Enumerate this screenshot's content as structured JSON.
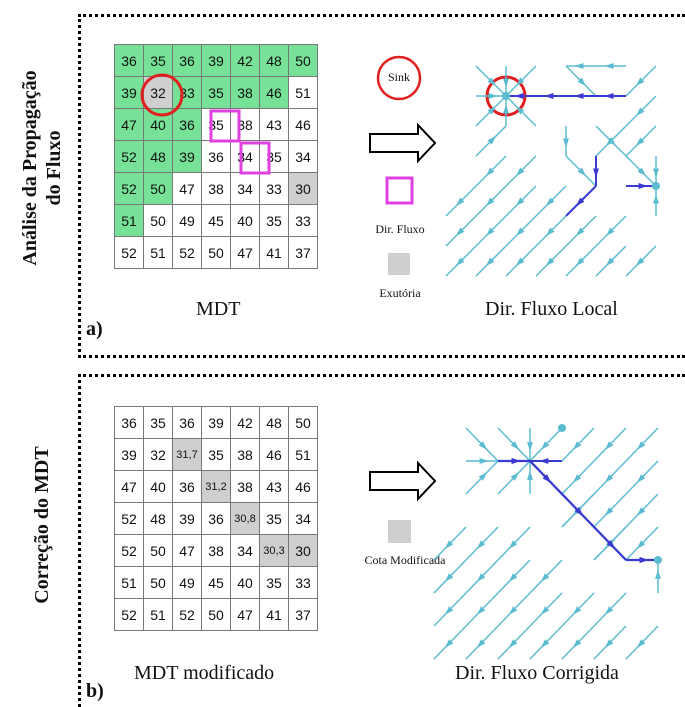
{
  "panel_a": {
    "vertical_title_line1": "Análise da Propagação",
    "vertical_title_line2": "do Fluxo",
    "letter": "a)",
    "grid_caption": "MDT",
    "result_caption": "Dir. Fluxo Local",
    "legend": {
      "sink": "Sink",
      "flow_dir": "Dir. Fluxo",
      "outlet": "Exutória"
    },
    "grid": [
      [
        "36",
        "35",
        "36",
        "39",
        "42",
        "48",
        "50"
      ],
      [
        "39",
        "32",
        "33",
        "35",
        "38",
        "46",
        "51"
      ],
      [
        "47",
        "40",
        "36",
        "35",
        "38",
        "43",
        "46"
      ],
      [
        "52",
        "48",
        "39",
        "36",
        "34",
        "35",
        "34"
      ],
      [
        "52",
        "50",
        "47",
        "38",
        "34",
        "33",
        "30"
      ],
      [
        "51",
        "50",
        "49",
        "45",
        "40",
        "35",
        "33"
      ],
      [
        "52",
        "51",
        "52",
        "50",
        "47",
        "41",
        "37"
      ]
    ],
    "colors": {
      "green": "#77e297",
      "sink_circle": "#e02020",
      "flow_box": "#e040e0",
      "outlet": "#cfcfcf",
      "arrow_light": "#5bbcd0",
      "arrow_dark": "#3a3ad0"
    }
  },
  "panel_b": {
    "vertical_title": "Correção do MDT",
    "letter": "b)",
    "grid_caption": "MDT modificado",
    "result_caption": "Dir. Fluxo Corrigida",
    "legend": {
      "modified": "Cota Modificada"
    },
    "grid": [
      [
        "36",
        "35",
        "36",
        "39",
        "42",
        "48",
        "50"
      ],
      [
        "39",
        "32",
        "31,7",
        "35",
        "38",
        "46",
        "51"
      ],
      [
        "47",
        "40",
        "36",
        "31,2",
        "38",
        "43",
        "46"
      ],
      [
        "52",
        "48",
        "39",
        "36",
        "30,8",
        "35",
        "34"
      ],
      [
        "52",
        "50",
        "47",
        "38",
        "34",
        "30,3",
        "30"
      ],
      [
        "51",
        "50",
        "49",
        "45",
        "40",
        "35",
        "33"
      ],
      [
        "52",
        "51",
        "52",
        "50",
        "47",
        "41",
        "37"
      ]
    ]
  }
}
